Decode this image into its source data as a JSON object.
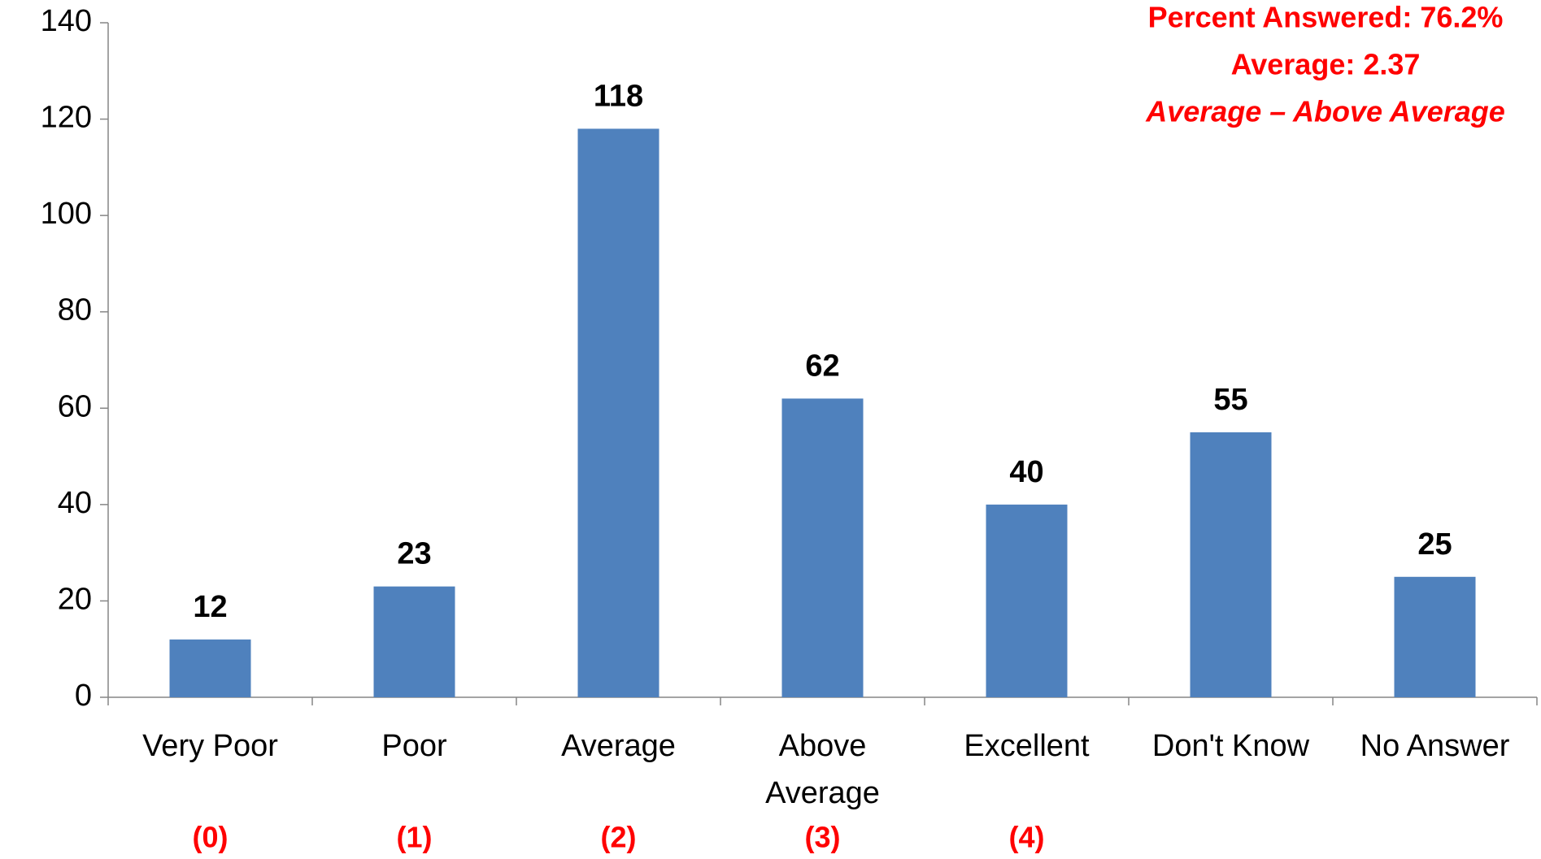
{
  "chart_data": {
    "type": "bar",
    "categories": [
      "Very Poor",
      "Poor",
      "Average",
      "Above Average",
      "Excellent",
      "Don't Know",
      "No Answer"
    ],
    "values": [
      12,
      23,
      118,
      62,
      40,
      55,
      25
    ],
    "color": "#4f81bd",
    "scale_codes": [
      "(0)",
      "(1)",
      "(2)",
      "(3)",
      "(4)"
    ],
    "annotations": [
      "Percent Answered: 76.2%",
      "Average: 2.37",
      "Average – Above Average"
    ],
    "ylim": [
      0,
      140
    ],
    "yticks": [
      0,
      20,
      40,
      60,
      80,
      100,
      120,
      140
    ],
    "grid": false
  }
}
